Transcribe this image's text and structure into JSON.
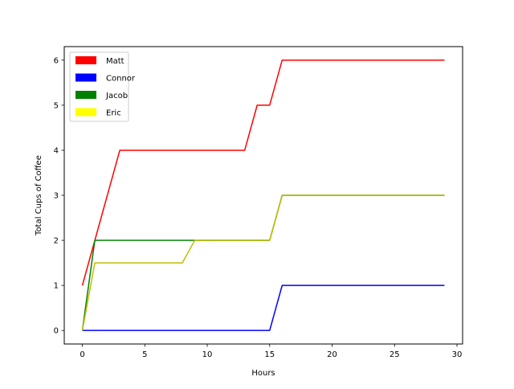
{
  "chart_data": {
    "type": "line",
    "xlabel": "Hours",
    "ylabel": "Total Cups of Coffee",
    "xlim": [
      -1.45,
      30.45
    ],
    "ylim": [
      -0.3,
      6.3
    ],
    "xticks": [
      0,
      5,
      10,
      15,
      20,
      25,
      30
    ],
    "yticks": [
      0,
      1,
      2,
      3,
      4,
      5,
      6
    ],
    "grid": false,
    "legend_position": "top-left",
    "series": [
      {
        "name": "Matt",
        "color": "#ff0000",
        "x": [
          0,
          3,
          13,
          14,
          15,
          16,
          29
        ],
        "y": [
          1,
          4,
          4,
          5,
          5,
          6,
          6
        ]
      },
      {
        "name": "Connor",
        "color": "#0000ff",
        "x": [
          0,
          15,
          16,
          29
        ],
        "y": [
          0,
          0,
          1,
          1
        ]
      },
      {
        "name": "Jacob",
        "color": "#008000",
        "x": [
          0,
          1,
          9,
          15,
          16,
          29
        ],
        "y": [
          0,
          2,
          2,
          2,
          3,
          3
        ]
      },
      {
        "name": "Eric",
        "color": "#bfbf00",
        "legend_color": "#ffff00",
        "x": [
          0,
          1,
          8,
          9,
          15,
          16,
          29
        ],
        "y": [
          0,
          1.5,
          1.5,
          2,
          2,
          3,
          3
        ]
      }
    ]
  }
}
